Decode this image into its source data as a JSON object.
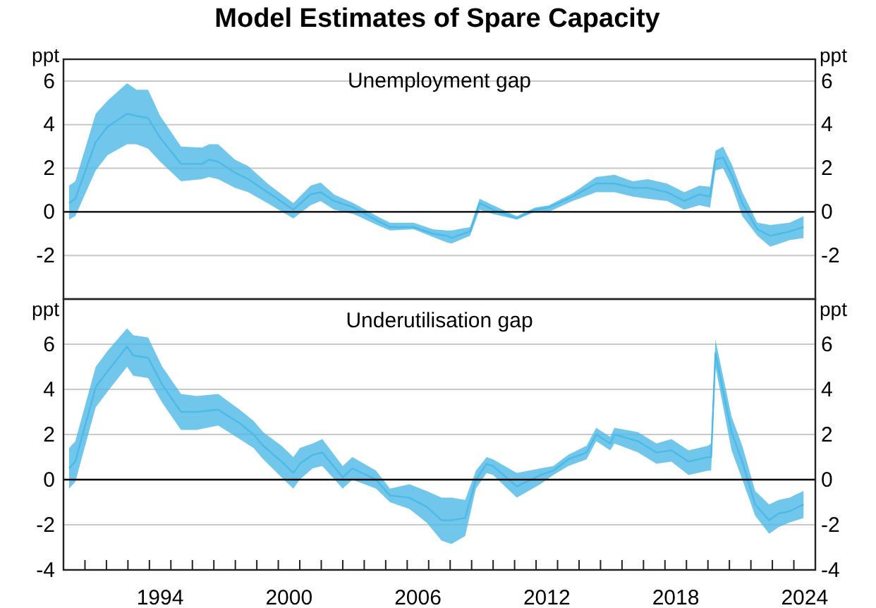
{
  "chart_data": [
    {
      "type": "line",
      "title": "Model Estimates of Spare Capacity",
      "subtitle": "Unemployment gap",
      "ylabel": "ppt",
      "y2label": "ppt",
      "xlim": [
        1990,
        2025
      ],
      "ylim": [
        -4,
        7
      ],
      "yticks": [
        -2,
        0,
        2,
        4,
        6
      ],
      "y2lim": [
        -4,
        7
      ],
      "y2ticks": [
        -2,
        0,
        2,
        4,
        6
      ],
      "tick_labels": "y",
      "grid": "y",
      "ref_lines": [
        {
          "axis": "y",
          "value": 0,
          "color": "#000000"
        }
      ],
      "series": [
        {
          "color": "#4cb9e6",
          "x": [
            1990.26,
            1990.55,
            1991.5,
            1992.05,
            1992.96,
            1993.4,
            1993.94,
            1994.5,
            1995.47,
            1996.45,
            1996.78,
            1997.2,
            1997.98,
            1998.6,
            1999.5,
            2000.7,
            2001.5,
            2001.97,
            2002.6,
            2003.5,
            2004.6,
            2005.2,
            2006.3,
            2007.2,
            2007.85,
            2008.06,
            2008.93,
            2009.37,
            2010.0,
            2011.1,
            2011.95,
            2012.6,
            2013.7,
            2014.8,
            2015.65,
            2016.5,
            2017.2,
            2018.1,
            2018.9,
            2019.6,
            2020.1,
            2020.35,
            2020.7,
            2021.1,
            2021.6,
            2022.3,
            2022.9,
            2023.8,
            2024.45
          ],
          "values": [
            0.4,
            0.6,
            3.2,
            3.9,
            4.5,
            4.4,
            4.3,
            3.4,
            2.2,
            2.2,
            2.4,
            2.3,
            1.8,
            1.5,
            0.9,
            0.1,
            0.8,
            0.9,
            0.5,
            0.2,
            -0.4,
            -0.7,
            -0.7,
            -1.0,
            -1.1,
            -1.2,
            -0.9,
            0.4,
            0.1,
            -0.3,
            0.1,
            0.2,
            0.7,
            1.3,
            1.3,
            1.1,
            1.1,
            0.9,
            0.5,
            0.8,
            0.7,
            2.4,
            2.5,
            1.7,
            0.4,
            -0.8,
            -1.1,
            -0.9,
            -0.7
          ],
          "upper": [
            1.2,
            1.4,
            4.5,
            5.1,
            5.9,
            5.6,
            5.6,
            4.4,
            3.0,
            2.95,
            3.1,
            3.1,
            2.4,
            2.1,
            1.3,
            0.4,
            1.2,
            1.35,
            0.8,
            0.4,
            -0.2,
            -0.5,
            -0.5,
            -0.8,
            -0.85,
            -0.85,
            -0.7,
            0.6,
            0.3,
            -0.2,
            0.2,
            0.3,
            0.85,
            1.6,
            1.7,
            1.4,
            1.5,
            1.3,
            0.9,
            1.2,
            1.15,
            2.8,
            3.0,
            2.2,
            0.9,
            -0.5,
            -0.6,
            -0.5,
            -0.2
          ],
          "lower": [
            -0.35,
            -0.2,
            1.9,
            2.6,
            3.1,
            3.1,
            2.9,
            2.3,
            1.4,
            1.5,
            1.6,
            1.5,
            1.1,
            0.9,
            0.4,
            -0.3,
            0.3,
            0.5,
            0.1,
            -0.1,
            -0.6,
            -0.85,
            -0.8,
            -1.15,
            -1.4,
            -1.45,
            -1.1,
            0.1,
            -0.1,
            -0.35,
            0.0,
            0.0,
            0.5,
            0.9,
            0.9,
            0.7,
            0.6,
            0.5,
            0.1,
            0.3,
            0.2,
            1.9,
            2.0,
            1.2,
            -0.2,
            -1.1,
            -1.6,
            -1.3,
            -1.2
          ]
        }
      ]
    },
    {
      "type": "line",
      "subtitle": "Underutilisation gap",
      "ylabel": "ppt",
      "y2label": "ppt",
      "xlim": [
        1990,
        2025
      ],
      "xticks": [
        {
          "value": 1991,
          "label": null
        },
        {
          "value": 1992,
          "label": null
        },
        {
          "value": 1993,
          "label": null
        },
        {
          "value": 1994,
          "label": null
        },
        {
          "value": 1994.5,
          "label": "1994"
        },
        {
          "value": 1995,
          "label": null
        },
        {
          "value": 1996,
          "label": null
        },
        {
          "value": 1997,
          "label": null
        },
        {
          "value": 1998,
          "label": null
        },
        {
          "value": 1999,
          "label": null
        },
        {
          "value": 2000,
          "label": null
        },
        {
          "value": 2000.5,
          "label": "2000"
        },
        {
          "value": 2001,
          "label": null
        },
        {
          "value": 2002,
          "label": null
        },
        {
          "value": 2003,
          "label": null
        },
        {
          "value": 2004,
          "label": null
        },
        {
          "value": 2005,
          "label": null
        },
        {
          "value": 2006,
          "label": null
        },
        {
          "value": 2006.5,
          "label": "2006"
        },
        {
          "value": 2007,
          "label": null
        },
        {
          "value": 2008,
          "label": null
        },
        {
          "value": 2009,
          "label": null
        },
        {
          "value": 2010,
          "label": null
        },
        {
          "value": 2011,
          "label": null
        },
        {
          "value": 2012,
          "label": null
        },
        {
          "value": 2012.5,
          "label": "2012"
        },
        {
          "value": 2013,
          "label": null
        },
        {
          "value": 2014,
          "label": null
        },
        {
          "value": 2015,
          "label": null
        },
        {
          "value": 2016,
          "label": null
        },
        {
          "value": 2017,
          "label": null
        },
        {
          "value": 2018,
          "label": null
        },
        {
          "value": 2018.5,
          "label": "2018"
        },
        {
          "value": 2019,
          "label": null
        },
        {
          "value": 2020,
          "label": null
        },
        {
          "value": 2021,
          "label": null
        },
        {
          "value": 2022,
          "label": null
        },
        {
          "value": 2023,
          "label": null
        },
        {
          "value": 2024,
          "label": null
        },
        {
          "value": 2024.5,
          "label": "2024"
        }
      ],
      "ylim": [
        -4,
        8
      ],
      "yticks": [
        -4,
        -2,
        0,
        2,
        4,
        6
      ],
      "y2lim": [
        -4,
        8
      ],
      "y2ticks": [
        -4,
        -2,
        0,
        2,
        4,
        6
      ],
      "grid": "y",
      "ref_lines": [
        {
          "axis": "y",
          "value": 0,
          "color": "#000000"
        }
      ],
      "series": [
        {
          "color": "#4cb9e6",
          "x": [
            1990.26,
            1990.55,
            1991.5,
            1992.05,
            1992.96,
            1993.25,
            1993.94,
            1994.6,
            1995.47,
            1996.2,
            1997.2,
            1998.2,
            1998.85,
            1999.3,
            2000.15,
            2000.7,
            2001.0,
            2001.6,
            2002.05,
            2003.0,
            2003.45,
            2004.55,
            2005.2,
            2006.1,
            2006.9,
            2007.6,
            2008.06,
            2008.7,
            2009.2,
            2009.7,
            2010.0,
            2011.1,
            2012.2,
            2012.8,
            2013.5,
            2014.35,
            2014.8,
            2015.45,
            2015.65,
            2016.75,
            2017.6,
            2018.3,
            2019.1,
            2020.0,
            2020.15,
            2020.35,
            2021.1,
            2021.6,
            2022.2,
            2022.85,
            2023.3,
            2023.8,
            2024.45
          ],
          "values": [
            0.5,
            0.8,
            4.1,
            4.8,
            5.9,
            5.5,
            5.4,
            4.2,
            3.0,
            3.0,
            3.1,
            2.5,
            2.0,
            1.5,
            0.8,
            0.3,
            0.7,
            1.1,
            1.2,
            0.1,
            0.5,
            0.0,
            -0.7,
            -0.8,
            -1.2,
            -1.8,
            -1.8,
            -1.7,
            0.0,
            0.7,
            0.6,
            -0.3,
            0.2,
            0.4,
            0.9,
            1.2,
            2.0,
            1.6,
            2.0,
            1.7,
            1.2,
            1.3,
            0.8,
            1.0,
            1.0,
            5.6,
            2.1,
            0.8,
            -1.1,
            -1.8,
            -1.5,
            -1.4,
            -1.1
          ],
          "upper": [
            1.4,
            1.7,
            5.0,
            5.7,
            6.7,
            6.4,
            6.3,
            5.0,
            3.8,
            3.7,
            3.8,
            3.1,
            2.6,
            2.1,
            1.5,
            1.0,
            1.4,
            1.6,
            1.8,
            0.6,
            1.0,
            0.4,
            -0.4,
            -0.2,
            -0.5,
            -0.8,
            -0.8,
            -0.9,
            0.4,
            1.0,
            0.9,
            0.3,
            0.5,
            0.6,
            1.1,
            1.5,
            2.3,
            1.9,
            2.3,
            2.1,
            1.6,
            1.8,
            1.3,
            1.5,
            1.6,
            6.2,
            2.8,
            1.5,
            -0.5,
            -1.1,
            -0.9,
            -0.8,
            -0.5
          ],
          "lower": [
            -0.4,
            -0.1,
            3.2,
            3.9,
            5.0,
            4.6,
            4.5,
            3.4,
            2.2,
            2.2,
            2.4,
            1.8,
            1.4,
            0.9,
            0.1,
            -0.4,
            0.0,
            0.5,
            0.6,
            -0.4,
            0.0,
            -0.4,
            -1.0,
            -1.3,
            -1.9,
            -2.7,
            -2.85,
            -2.5,
            -0.4,
            0.3,
            0.2,
            -0.8,
            -0.2,
            0.2,
            0.6,
            0.9,
            1.7,
            1.3,
            1.6,
            1.2,
            0.7,
            0.8,
            0.2,
            0.4,
            0.4,
            5.0,
            1.3,
            0.0,
            -1.6,
            -2.4,
            -2.1,
            -1.9,
            -1.7
          ]
        }
      ]
    }
  ]
}
